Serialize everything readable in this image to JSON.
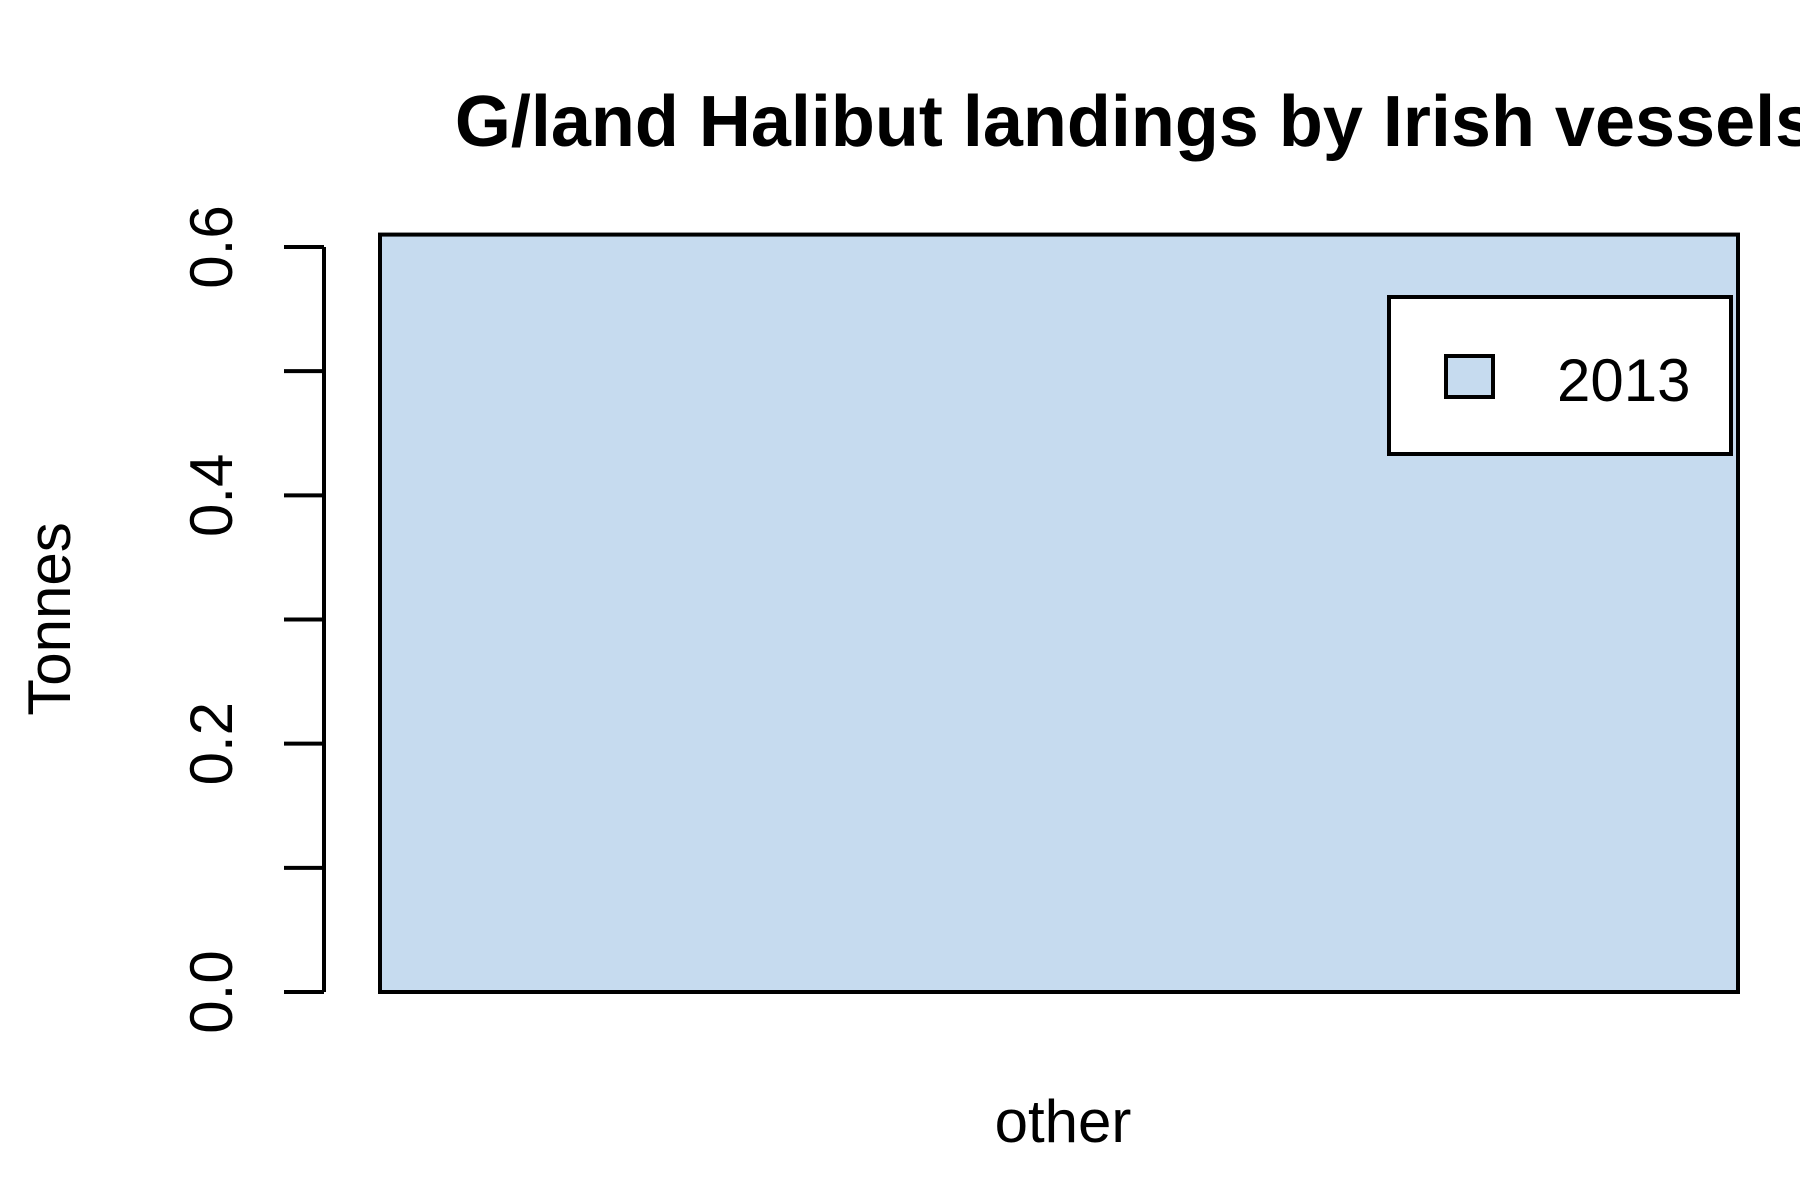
{
  "chart_data": {
    "type": "bar",
    "title": "G/land Halibut landings by Irish vessels",
    "xlabel": "",
    "ylabel": "Tonnes",
    "categories": [
      "other"
    ],
    "series": [
      {
        "name": "2013",
        "values": [
          0.61
        ],
        "color": "#c6dbef"
      }
    ],
    "ylim": [
      0,
      0.6
    ],
    "yticks": [
      0,
      0.1,
      0.2,
      0.3,
      0.4,
      0.5,
      0.6
    ],
    "ytick_labels": [
      "0.0",
      "",
      "0.2",
      "",
      "0.4",
      "",
      "0.6"
    ],
    "grid": false,
    "legend_position": "top-right",
    "colors": {
      "bar_fill": "#c6dbef",
      "stroke": "#000000",
      "background": "#ffffff"
    }
  }
}
